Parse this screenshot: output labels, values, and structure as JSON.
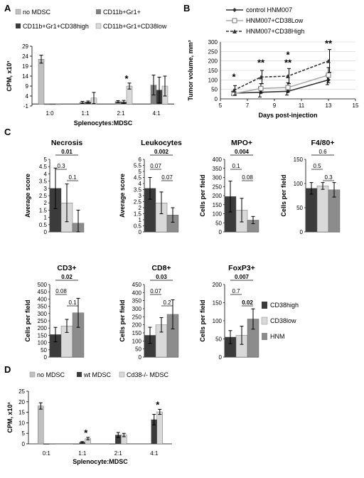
{
  "figure": {
    "panels": [
      {
        "id": "A",
        "label": "A"
      },
      {
        "id": "B",
        "label": "B"
      },
      {
        "id": "C",
        "label": "C"
      },
      {
        "id": "D",
        "label": "D"
      }
    ]
  },
  "colors": {
    "no_mdsc": "#c0c0c0",
    "cd11b_gr1": "#808080",
    "cd38high": "#3b3b3b",
    "cd38low": "#d9d9d9",
    "hnm": "#8c8c8c",
    "wt_mdsc": "#3b3b3b",
    "cd38ko_mdsc": "#d9d9d9"
  },
  "chart_data": [
    {
      "panel": "A",
      "type": "bar",
      "xlabel": "Splenocytes:MDSC",
      "ylabel": "CPM, x10³",
      "ylim": [
        -1,
        29
      ],
      "yticks": [
        -1,
        4,
        9,
        14,
        19,
        24,
        29
      ],
      "categories": [
        "1:0",
        "1:1",
        "2:1",
        "4:1"
      ],
      "series": [
        {
          "name": "no MDSC",
          "color_key": "no_mdsc",
          "values": [
            22.5,
            null,
            null,
            null
          ],
          "errors": [
            2.0,
            null,
            null,
            null
          ]
        },
        {
          "name": "CD11b+Gr1+",
          "color_key": "cd11b_gr1",
          "values": [
            0,
            0.8,
            1.2,
            9.5
          ],
          "errors": [
            0,
            0.5,
            0.5,
            5.0
          ]
        },
        {
          "name": "CD11b+Gr1+CD38high",
          "color_key": "cd38high",
          "values": [
            0,
            1.0,
            1.0,
            7.0
          ],
          "errors": [
            0,
            0.5,
            0.8,
            6.5
          ]
        },
        {
          "name": "CD11b+Gr1+CD38low",
          "color_key": "cd38low",
          "values": [
            0,
            3.0,
            9.0,
            9.0
          ],
          "errors": [
            0,
            2.8,
            1.5,
            5.0
          ]
        }
      ],
      "annotations": [
        {
          "category": "2:1",
          "text": "*"
        }
      ]
    },
    {
      "panel": "B",
      "type": "line",
      "xlabel": "Days post-injection",
      "ylabel": "Tumor volume, mm³",
      "xlim": [
        5,
        15
      ],
      "xticks": [
        5,
        7,
        9,
        11,
        13,
        15
      ],
      "ylim": [
        0,
        300
      ],
      "yticks": [
        0,
        50,
        100,
        150,
        200,
        250,
        300
      ],
      "series": [
        {
          "name": "control HNM007",
          "style": "solid-dark",
          "x": [
            6,
            8,
            10,
            13
          ],
          "y": [
            30,
            35,
            40,
            100
          ],
          "errors": [
            10,
            25,
            20,
            25
          ]
        },
        {
          "name": "HNM007+CD38Low",
          "style": "solid-light",
          "x": [
            6,
            8,
            10,
            13
          ],
          "y": [
            28,
            55,
            60,
            125
          ],
          "errors": [
            10,
            25,
            25,
            40
          ]
        },
        {
          "name": "HNM007+CD38High",
          "style": "dashed",
          "x": [
            6,
            8,
            10,
            13
          ],
          "y": [
            45,
            115,
            120,
            200
          ],
          "errors": [
            25,
            35,
            40,
            60
          ]
        }
      ],
      "annotations": [
        {
          "x": 6,
          "text": "*"
        },
        {
          "x": 8,
          "text": "**"
        },
        {
          "x": 10,
          "text": "*"
        },
        {
          "x": 10,
          "text": "**"
        },
        {
          "x": 13,
          "text": "**"
        }
      ]
    },
    {
      "panel": "C",
      "type": "bar",
      "title": "Necrosis",
      "ylabel": "Average score",
      "ylim": [
        0,
        5
      ],
      "yticks": [
        0,
        0.5,
        1,
        1.5,
        2,
        2.5,
        3,
        3.5,
        4,
        4.5,
        5
      ],
      "categories": [
        "CD38high",
        "CD38low",
        "HNM"
      ],
      "values": [
        3.0,
        2.0,
        0.6
      ],
      "errors": [
        1.4,
        1.3,
        0.9
      ],
      "pvalues": [
        {
          "text": "0.01",
          "bold": true,
          "from": 0,
          "to": 2
        },
        {
          "text": "0.3",
          "bold": false,
          "from": 0,
          "to": 1
        },
        {
          "text": "0.1",
          "bold": false,
          "from": 1,
          "to": 2
        }
      ]
    },
    {
      "panel": "C",
      "type": "bar",
      "title": "Leukocytes",
      "ylabel": "Average score",
      "ylim": [
        0,
        6
      ],
      "yticks": [
        0,
        0.5,
        1,
        1.5,
        2,
        2.5,
        3,
        3.5,
        4,
        4.5,
        5,
        5.5,
        6
      ],
      "categories": [
        "CD38high",
        "CD38low",
        "HNM"
      ],
      "values": [
        3.6,
        2.4,
        1.4
      ],
      "errors": [
        0.9,
        0.9,
        0.6
      ],
      "pvalues": [
        {
          "text": "0.002",
          "bold": true,
          "from": 0,
          "to": 2
        },
        {
          "text": "0.07",
          "bold": false,
          "from": 0,
          "to": 1
        },
        {
          "text": "0.07",
          "bold": false,
          "from": 1,
          "to": 2
        }
      ]
    },
    {
      "panel": "C",
      "type": "bar",
      "title": "MPO+",
      "ylabel": "Cells per field",
      "ylim": [
        0,
        400
      ],
      "yticks": [
        0,
        50,
        100,
        150,
        200,
        250,
        300,
        350,
        400
      ],
      "categories": [
        "CD38high",
        "CD38low",
        "HNM"
      ],
      "values": [
        195,
        120,
        65
      ],
      "errors": [
        85,
        65,
        20
      ],
      "pvalues": [
        {
          "text": "0.004",
          "bold": true,
          "from": 0,
          "to": 2
        },
        {
          "text": "0.1",
          "bold": false,
          "from": 0,
          "to": 1
        },
        {
          "text": "0.08",
          "bold": false,
          "from": 1,
          "to": 2
        }
      ]
    },
    {
      "panel": "C",
      "type": "bar",
      "title": "F4/80+",
      "ylabel": "Cells per field",
      "ylim": [
        0,
        150
      ],
      "yticks": [
        0,
        50,
        100,
        150
      ],
      "categories": [
        "CD38high",
        "CD38low",
        "HNM"
      ],
      "values": [
        90,
        95,
        87
      ],
      "errors": [
        12,
        7,
        15
      ],
      "pvalues": [
        {
          "text": "0.6",
          "bold": false,
          "from": 0,
          "to": 2
        },
        {
          "text": "0.5",
          "bold": false,
          "from": 0,
          "to": 1
        },
        {
          "text": "0.3",
          "bold": false,
          "from": 1,
          "to": 2
        }
      ]
    },
    {
      "panel": "C",
      "type": "bar",
      "title": "CD3+",
      "ylabel": "Cells per field",
      "ylim": [
        0,
        500
      ],
      "yticks": [
        0,
        50,
        100,
        150,
        200,
        250,
        300,
        350,
        400,
        450,
        500
      ],
      "categories": [
        "CD38high",
        "CD38low",
        "HNM"
      ],
      "values": [
        155,
        215,
        305
      ],
      "errors": [
        50,
        45,
        100
      ],
      "pvalues": [
        {
          "text": "0.02",
          "bold": true,
          "from": 0,
          "to": 2
        },
        {
          "text": "0.08",
          "bold": false,
          "from": 0,
          "to": 1
        },
        {
          "text": "0.1",
          "bold": false,
          "from": 1,
          "to": 2
        }
      ]
    },
    {
      "panel": "C",
      "type": "bar",
      "title": "CD8+",
      "ylabel": "Cells per field",
      "ylim": [
        0,
        450
      ],
      "yticks": [
        0,
        50,
        100,
        150,
        200,
        250,
        300,
        350,
        400,
        450
      ],
      "categories": [
        "CD38high",
        "CD38low",
        "HNM"
      ],
      "values": [
        135,
        200,
        265
      ],
      "errors": [
        50,
        45,
        90
      ],
      "pvalues": [
        {
          "text": "0.03",
          "bold": true,
          "from": 0,
          "to": 2
        },
        {
          "text": "0.07",
          "bold": false,
          "from": 0,
          "to": 1
        },
        {
          "text": "0.2",
          "bold": false,
          "from": 1,
          "to": 2
        }
      ]
    },
    {
      "panel": "C",
      "type": "bar",
      "title": "FoxP3+",
      "ylabel": "Cells per field",
      "ylim": [
        0,
        200
      ],
      "yticks": [
        0,
        50,
        100,
        150,
        200
      ],
      "categories": [
        "CD38high",
        "CD38low",
        "HNM"
      ],
      "values": [
        55,
        60,
        105
      ],
      "errors": [
        18,
        25,
        28
      ],
      "pvalues": [
        {
          "text": "0.007",
          "bold": true,
          "from": 0,
          "to": 2
        },
        {
          "text": "0.7",
          "bold": false,
          "from": 0,
          "to": 1
        },
        {
          "text": "0.02",
          "bold": true,
          "from": 1,
          "to": 2
        }
      ]
    },
    {
      "panel": "D",
      "type": "bar",
      "xlabel": "Splenocyte:MDSC",
      "ylabel": "CPM, x10³",
      "ylim": [
        0,
        25
      ],
      "yticks": [
        0,
        5,
        10,
        15,
        20,
        25
      ],
      "categories": [
        "0:1",
        "1:1",
        "2:1",
        "4:1"
      ],
      "series": [
        {
          "name": "no MDSC",
          "color_key": "no_mdsc",
          "values": [
            18,
            0,
            0,
            null
          ],
          "errors": [
            1.5,
            0,
            0,
            null
          ]
        },
        {
          "name": "wt MDSC",
          "color_key": "wt_mdsc",
          "values": [
            0,
            0.8,
            4.2,
            11.5
          ],
          "errors": [
            0,
            0.3,
            1.2,
            2.5
          ]
        },
        {
          "name": "Cd38-/- MDSC",
          "color_key": "cd38ko_mdsc",
          "values": [
            0,
            2.5,
            4.2,
            15.2
          ],
          "errors": [
            0,
            0.6,
            0.8,
            1.2
          ]
        }
      ],
      "annotations": [
        {
          "category": "1:1",
          "text": "*"
        },
        {
          "category": "4:1",
          "text": "*"
        }
      ]
    }
  ],
  "legend_c": [
    {
      "name": "CD38high",
      "color_key": "cd38high"
    },
    {
      "name": "CD38low",
      "color_key": "cd38low"
    },
    {
      "name": "HNM",
      "color_key": "hnm"
    }
  ]
}
